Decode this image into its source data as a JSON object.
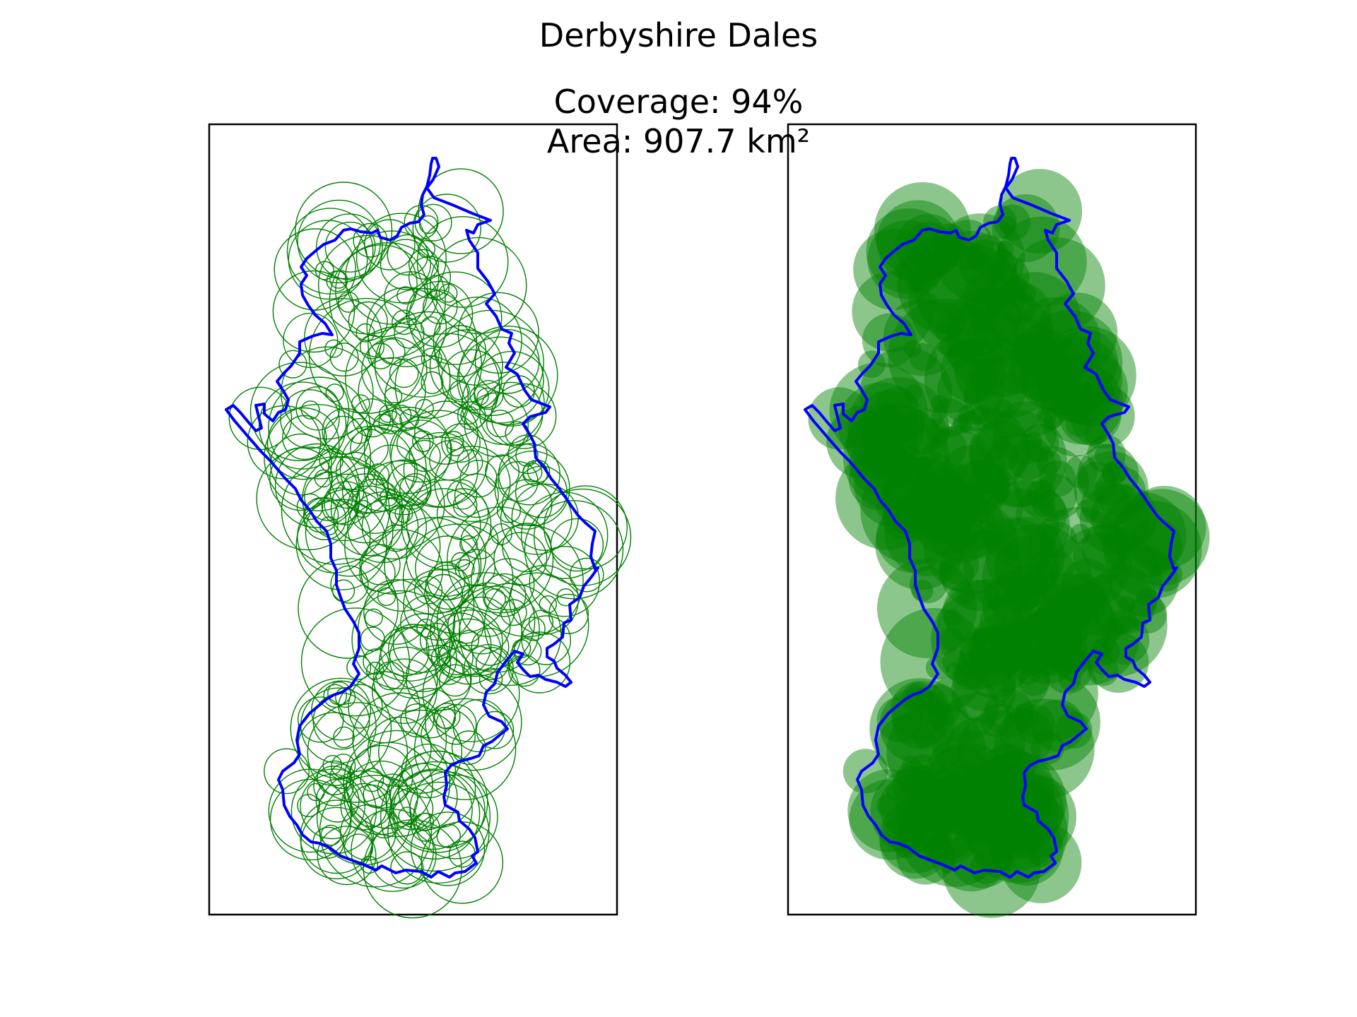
{
  "figure": {
    "title": "Derbyshire Dales",
    "coverage_text": "Coverage: 94%",
    "area_text": "Area: 907.7 km²"
  },
  "colors": {
    "boundary": "#0000ff",
    "circles": "#008000",
    "frame": "#000000",
    "background": "#ffffff"
  },
  "panels": [
    {
      "name": "circle-outlines",
      "circle_style": "outline"
    },
    {
      "name": "circle-filled",
      "circle_style": "filled-translucent"
    }
  ]
}
